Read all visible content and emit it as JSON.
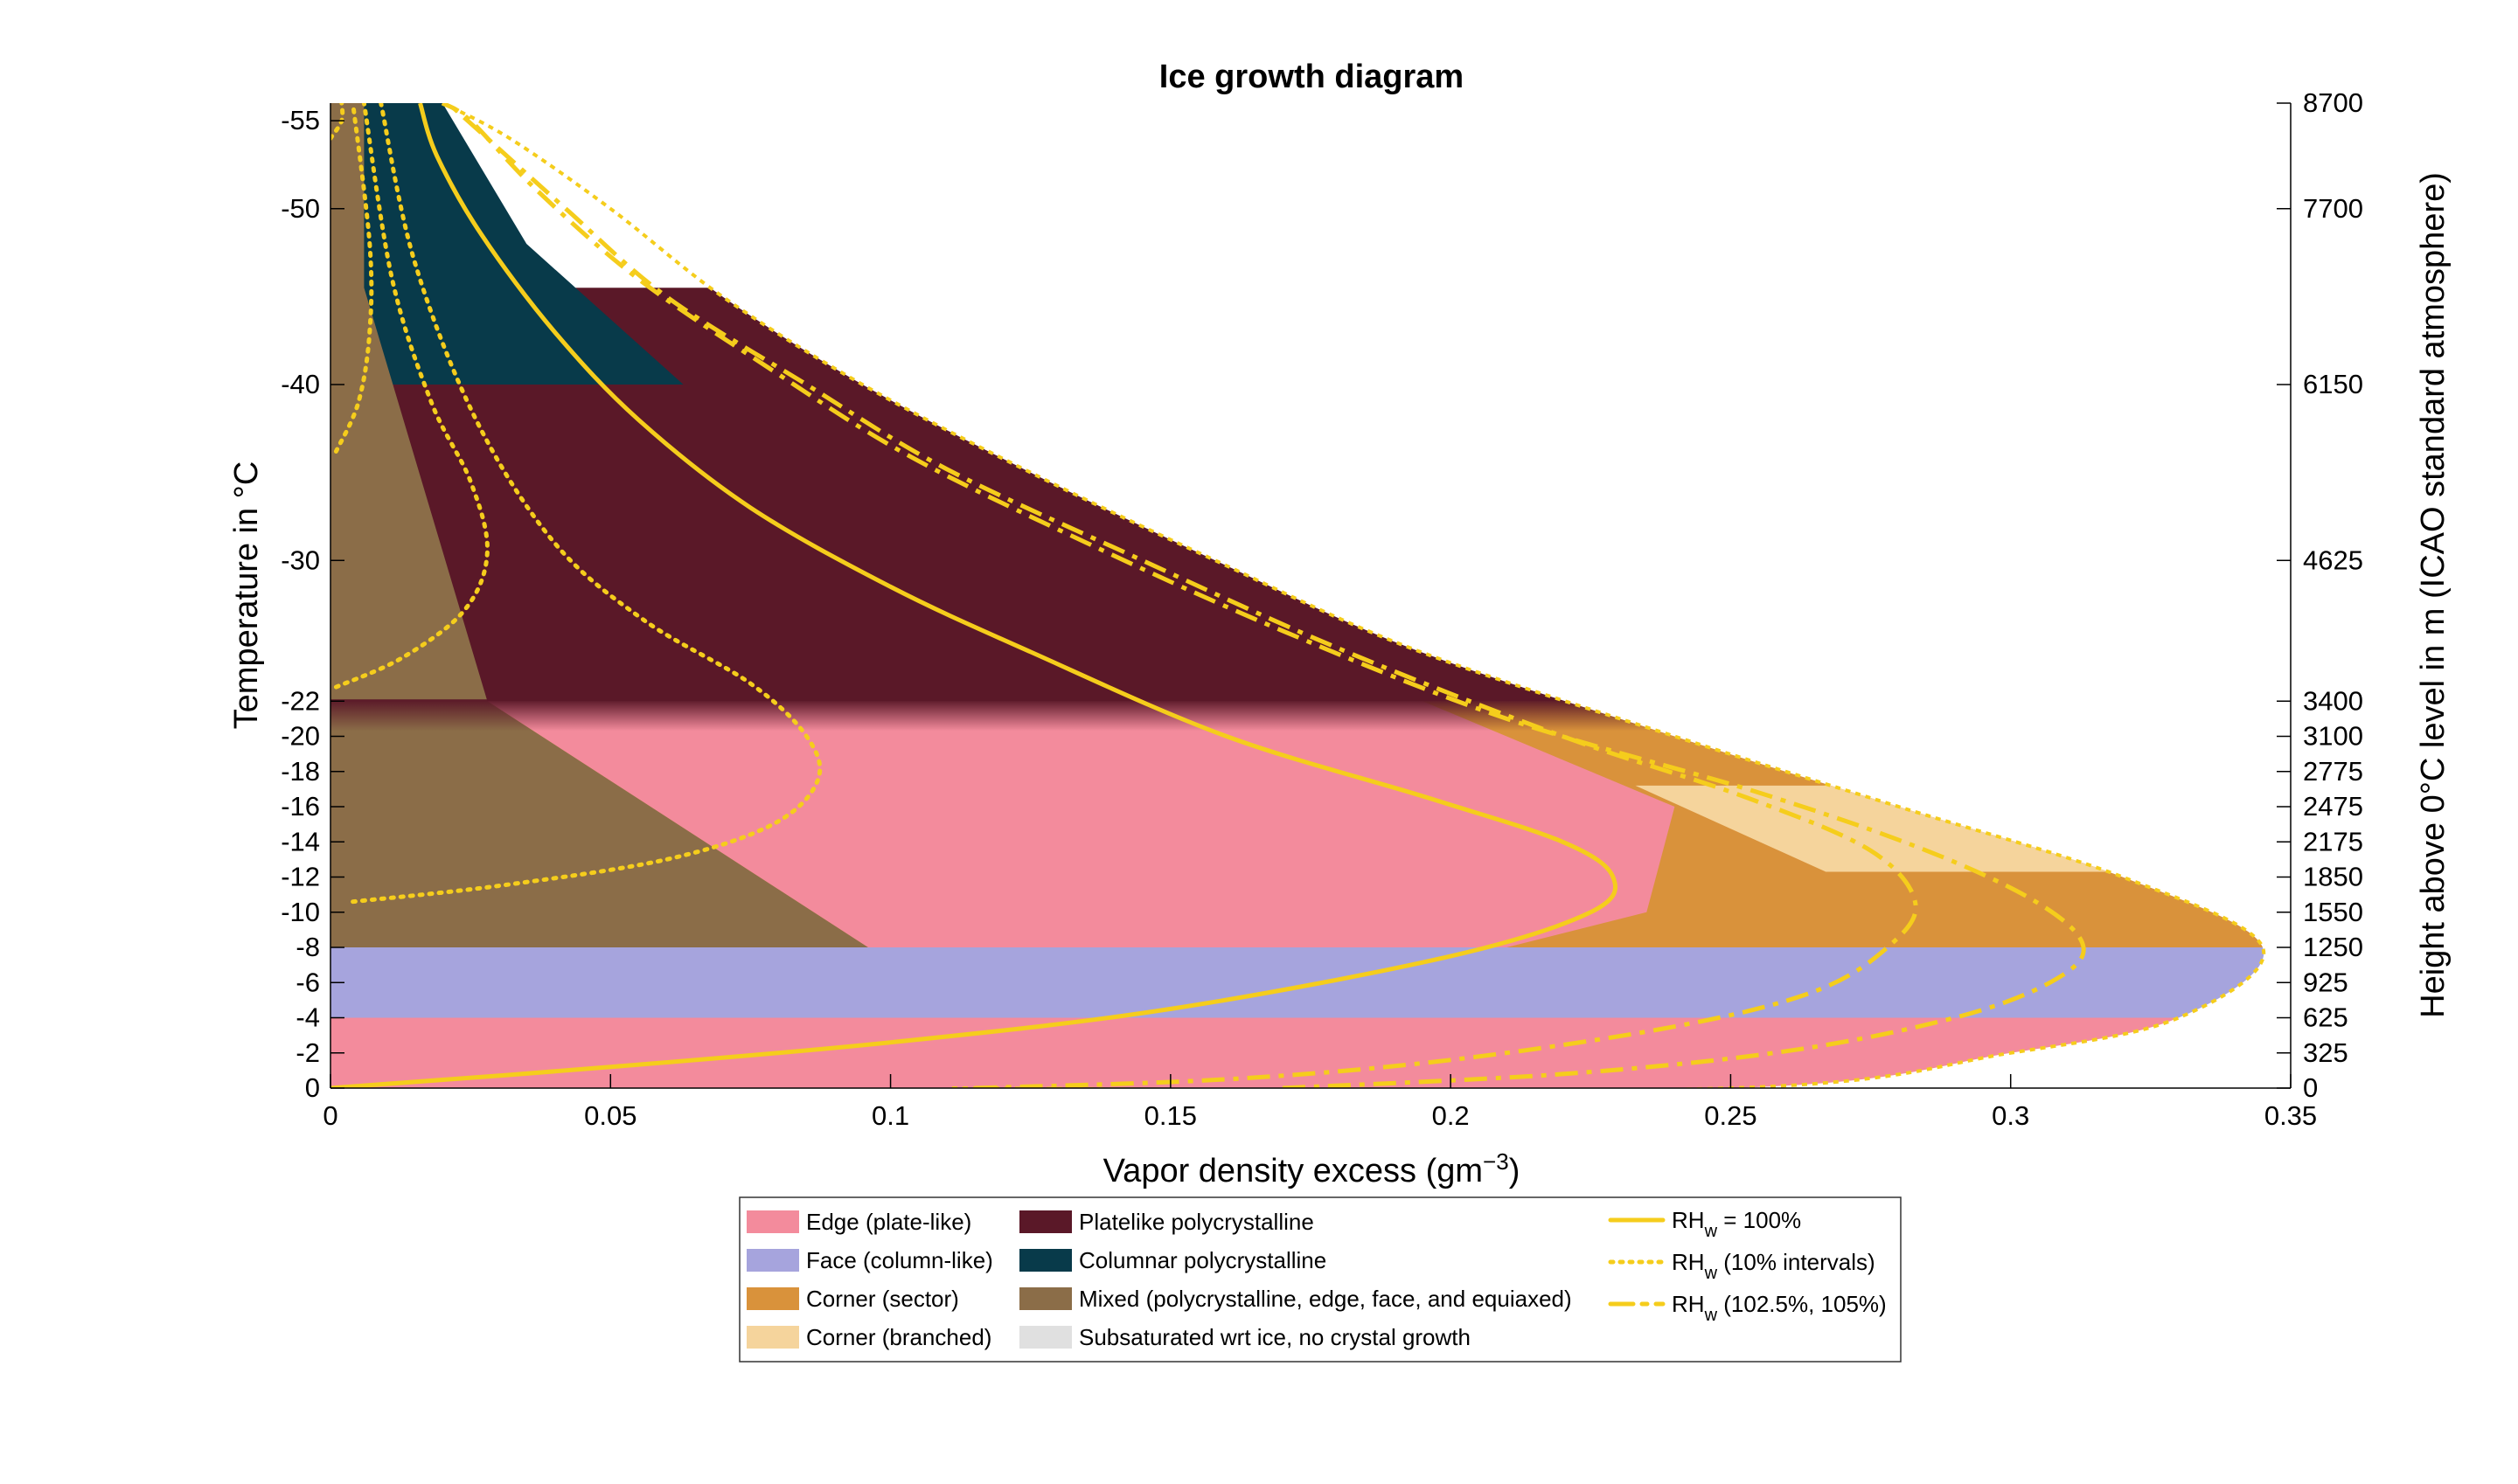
{
  "chart_data": {
    "type": "area",
    "title": "Ice growth diagram",
    "xlabel": "Vapor density excess (gm",
    "xlabel_sup": "−3",
    "xlabel_end": ")",
    "ylabel": "Temperature in °C",
    "y2label": "Height above 0°C level in m (ICAO standard atmosphere)",
    "xlim": [
      0,
      0.35
    ],
    "ylim": [
      0,
      -56
    ],
    "x_ticks": [
      {
        "value": 0,
        "label": "0"
      },
      {
        "value": 0.05,
        "label": "0.05"
      },
      {
        "value": 0.1,
        "label": "0.1"
      },
      {
        "value": 0.15,
        "label": "0.15"
      },
      {
        "value": 0.2,
        "label": "0.2"
      },
      {
        "value": 0.25,
        "label": "0.25"
      },
      {
        "value": 0.3,
        "label": "0.3"
      },
      {
        "value": 0.35,
        "label": "0.35"
      }
    ],
    "y_ticks": [
      {
        "value": -55,
        "label": "-55"
      },
      {
        "value": -50,
        "label": "-50"
      },
      {
        "value": -40,
        "label": "-40"
      },
      {
        "value": -30,
        "label": "-30"
      },
      {
        "value": -22,
        "label": "-22"
      },
      {
        "value": -20,
        "label": "-20"
      },
      {
        "value": -18,
        "label": "-18"
      },
      {
        "value": -16,
        "label": "-16"
      },
      {
        "value": -14,
        "label": "-14"
      },
      {
        "value": -12,
        "label": "-12"
      },
      {
        "value": -10,
        "label": "-10"
      },
      {
        "value": -8,
        "label": "-8"
      },
      {
        "value": -6,
        "label": "-6"
      },
      {
        "value": -4,
        "label": "-4"
      },
      {
        "value": -2,
        "label": "-2"
      },
      {
        "value": 0,
        "label": "0"
      }
    ],
    "y2_ticks": [
      {
        "value": -56,
        "label": "8700"
      },
      {
        "value": -50,
        "label": "7700"
      },
      {
        "value": -40,
        "label": "6150"
      },
      {
        "value": -30,
        "label": "4625"
      },
      {
        "value": -22,
        "label": "3400"
      },
      {
        "value": -20,
        "label": "3100"
      },
      {
        "value": -18,
        "label": "2775"
      },
      {
        "value": -16,
        "label": "2475"
      },
      {
        "value": -14,
        "label": "2175"
      },
      {
        "value": -12,
        "label": "1850"
      },
      {
        "value": -10,
        "label": "1550"
      },
      {
        "value": -8,
        "label": "1250"
      },
      {
        "value": -6,
        "label": "925"
      },
      {
        "value": -4,
        "label": "625"
      },
      {
        "value": -2,
        "label": "325"
      },
      {
        "value": 0,
        "label": "0"
      }
    ],
    "colors": {
      "edge": "#f38b9c",
      "face": "#a6a4dd",
      "corner_sector": "#d9923b",
      "corner_branched": "#f5d49c",
      "platelike_poly": "#5a1828",
      "columnar_poly": "#083a4a",
      "mixed": "#8b6d48",
      "subsaturated": "#e0e0e0",
      "rhw": "#f5cd1c"
    },
    "regions": [
      {
        "name": "Edge (plate-like)",
        "color_key": "edge",
        "polygon": [
          [
            0,
            0
          ],
          [
            0.35,
            0
          ],
          [
            0.35,
            -4
          ],
          [
            0,
            -4
          ]
        ]
      },
      {
        "name": "Face (column-like)",
        "color_key": "face",
        "polygon": [
          [
            0,
            -4
          ],
          [
            0.35,
            -4
          ],
          [
            0.35,
            -8
          ],
          [
            0,
            -8
          ]
        ]
      },
      {
        "name": "Corner (sector)",
        "color_key": "corner_sector",
        "polygon": [
          [
            0,
            -8
          ],
          [
            0.35,
            -8
          ],
          [
            0.35,
            -22
          ],
          [
            0,
            -22
          ]
        ]
      },
      {
        "name": "Edge (plate-like)",
        "color_key": "edge",
        "polygon": [
          [
            0.096,
            -8
          ],
          [
            0.21,
            -8
          ],
          [
            0.235,
            -10
          ],
          [
            0.24,
            -16
          ],
          [
            0.195,
            -22
          ],
          [
            0.028,
            -22
          ]
        ]
      },
      {
        "name": "Corner (branched)",
        "color_key": "corner_branched",
        "polygon": [
          [
            0.267,
            -12.3
          ],
          [
            0.33,
            -12.3
          ],
          [
            0.33,
            -17.2
          ],
          [
            0.233,
            -17.2
          ]
        ]
      },
      {
        "name": "Platelike polycrystalline",
        "color_key": "platelike_poly",
        "polygon": [
          [
            0,
            -22
          ],
          [
            0.35,
            -22
          ],
          [
            0.35,
            -45.5
          ],
          [
            0.004,
            -45.5
          ]
        ]
      },
      {
        "name": "Columnar polycrystalline",
        "color_key": "columnar_poly",
        "polygon": [
          [
            0,
            -40
          ],
          [
            0.063,
            -40
          ],
          [
            0.035,
            -48
          ],
          [
            0.02,
            -56
          ],
          [
            0,
            -56
          ]
        ]
      },
      {
        "name": "Mixed (polycrystalline, edge, face, and equiaxed)",
        "color_key": "mixed",
        "polygon": [
          [
            0,
            0
          ],
          [
            0,
            -56
          ],
          [
            0.006,
            -56
          ],
          [
            0.006,
            -45.5
          ],
          [
            0.028,
            -22
          ],
          [
            0.096,
            -8
          ],
          [
            0,
            -8
          ]
        ]
      }
    ],
    "rhw_100": [
      [
        0,
        0
      ],
      [
        0.05,
        -1.2
      ],
      [
        0.1,
        -2.6
      ],
      [
        0.15,
        -4.5
      ],
      [
        0.2,
        -7.5
      ],
      [
        0.225,
        -10
      ],
      [
        0.229,
        -12
      ],
      [
        0.22,
        -14
      ],
      [
        0.196,
        -16.5
      ],
      [
        0.16,
        -20
      ],
      [
        0.125,
        -24.8
      ],
      [
        0.1,
        -28.5
      ],
      [
        0.075,
        -33
      ],
      [
        0.055,
        -38
      ],
      [
        0.04,
        -43
      ],
      [
        0.027,
        -48.5
      ],
      [
        0.019,
        -53
      ],
      [
        0.016,
        -56
      ]
    ],
    "rhw_105": [
      [
        0.115,
        0
      ],
      [
        0.16,
        -0.5
      ],
      [
        0.2,
        -1.6
      ],
      [
        0.24,
        -3.5
      ],
      [
        0.265,
        -5.5
      ],
      [
        0.278,
        -8
      ],
      [
        0.283,
        -10.5
      ],
      [
        0.275,
        -13.5
      ],
      [
        0.253,
        -16.5
      ],
      [
        0.22,
        -20
      ],
      [
        0.18,
        -25
      ],
      [
        0.145,
        -30
      ],
      [
        0.11,
        -35.2
      ],
      [
        0.085,
        -40
      ],
      [
        0.06,
        -45
      ],
      [
        0.042,
        -50
      ],
      [
        0.028,
        -54
      ],
      [
        0.021,
        -56
      ]
    ],
    "rhw_102_5": [
      [
        0.17,
        0
      ],
      [
        0.22,
        -0.8
      ],
      [
        0.26,
        -2.1
      ],
      [
        0.29,
        -4
      ],
      [
        0.307,
        -6
      ],
      [
        0.313,
        -8
      ],
      [
        0.305,
        -10.5
      ],
      [
        0.285,
        -13.5
      ],
      [
        0.255,
        -16.8
      ],
      [
        0.21,
        -21
      ],
      [
        0.17,
        -26
      ],
      [
        0.135,
        -31
      ],
      [
        0.103,
        -36
      ],
      [
        0.078,
        -41
      ],
      [
        0.055,
        -46
      ],
      [
        0.037,
        -51
      ],
      [
        0.025,
        -55
      ],
      [
        0.02,
        -56
      ]
    ],
    "rhw_10pct": [
      [
        [
          0.004,
          -10.6
        ],
        [
          0.03,
          -11.5
        ],
        [
          0.06,
          -13
        ],
        [
          0.079,
          -15
        ],
        [
          0.087,
          -17.5
        ],
        [
          0.085,
          -20
        ],
        [
          0.075,
          -23
        ],
        [
          0.056,
          -26.6
        ],
        [
          0.04,
          -31
        ],
        [
          0.026,
          -38
        ],
        [
          0.015,
          -47
        ],
        [
          0.009,
          -56
        ]
      ],
      [
        [
          0.001,
          -22.8
        ],
        [
          0.013,
          -24.5
        ],
        [
          0.024,
          -27.2
        ],
        [
          0.028,
          -30.5
        ],
        [
          0.025,
          -34.5
        ],
        [
          0.018,
          -39
        ],
        [
          0.011,
          -46
        ],
        [
          0.006,
          -56
        ]
      ],
      [
        [
          0.001,
          -36.2
        ],
        [
          0.005,
          -39
        ],
        [
          0.007,
          -43
        ],
        [
          0.007,
          -48
        ],
        [
          0.004,
          -56
        ]
      ],
      [
        [
          0,
          -54
        ],
        [
          0.002,
          -55
        ],
        [
          0.002,
          -56
        ]
      ]
    ],
    "envelope": [
      [
        0.111,
        0
      ],
      [
        0.25,
        0
      ],
      [
        0.3,
        -2
      ],
      [
        0.33,
        -4
      ],
      [
        0.345,
        -8
      ],
      [
        0.32,
        -12
      ],
      [
        0.28,
        -16
      ],
      [
        0.24,
        -20
      ],
      [
        0.193,
        -25
      ],
      [
        0.158,
        -30
      ],
      [
        0.125,
        -35
      ],
      [
        0.095,
        -40
      ],
      [
        0.07,
        -45
      ],
      [
        0.05,
        -50
      ],
      [
        0.032,
        -54
      ],
      [
        0.02,
        -56
      ]
    ],
    "legend": {
      "col1": [
        "Edge (plate-like)",
        "Face (column-like)",
        "Corner (sector)",
        "Corner (branched)"
      ],
      "col2": [
        "Platelike polycrystalline",
        "Columnar polycrystalline",
        "Mixed (polycrystalline, edge, face, and equiaxed)",
        "Subsaturated wrt ice, no crystal growth"
      ],
      "col3": [
        {
          "base": "RH",
          "sub": "w",
          "rest": " = 100%"
        },
        {
          "base": "RH",
          "sub": "w",
          "rest": " (10% intervals)"
        },
        {
          "base": "RH",
          "sub": "w",
          "rest": " (102.5%, 105%)"
        }
      ],
      "placement": "bottom-center"
    }
  }
}
